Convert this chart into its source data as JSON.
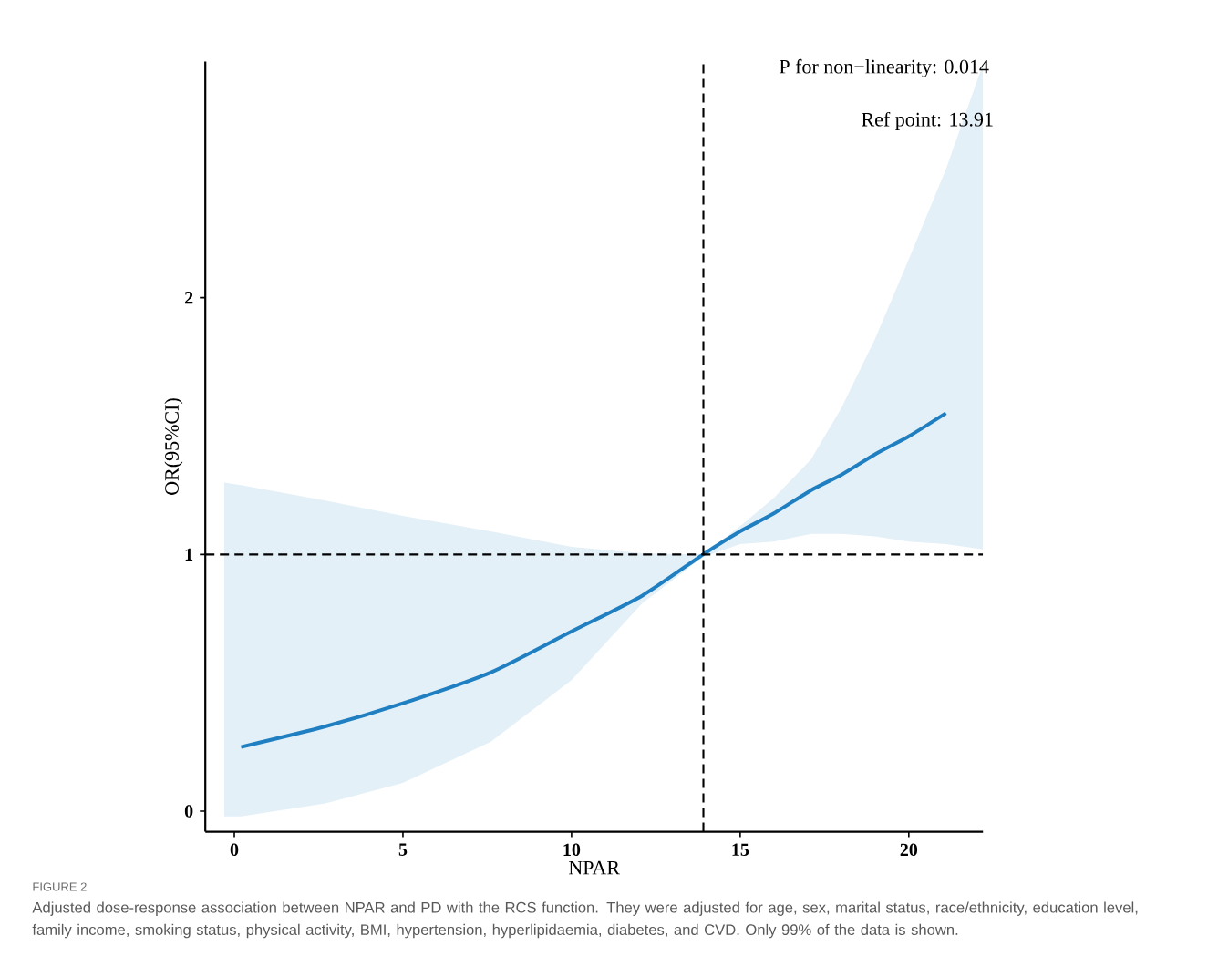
{
  "chart_data": {
    "type": "line",
    "xlabel": "NPAR",
    "ylabel": "OR(95%CI)",
    "xlim": [
      -0.86,
      22.2
    ],
    "ylim": [
      -0.08,
      2.92
    ],
    "xticks": [
      0,
      5,
      10,
      15,
      20
    ],
    "yticks": [
      0,
      1,
      2
    ],
    "grid": false,
    "marker": "none",
    "line_style": "solid",
    "series": [
      {
        "color": "#1f7fc1",
        "x": [
          -0.3,
          0.2,
          2.7,
          5.0,
          7.6,
          10.0,
          12.1,
          13.9,
          15.0,
          16.0,
          17.1,
          18.0,
          19.0,
          20.0,
          21.1,
          22.2
        ],
        "values": [
          null,
          0.25,
          0.33,
          0.42,
          0.54,
          0.7,
          0.84,
          1.0,
          1.09,
          1.16,
          1.25,
          1.31,
          1.39,
          1.46,
          1.55,
          null
        ],
        "lower": [
          -0.02,
          -0.02,
          0.03,
          0.11,
          0.27,
          0.51,
          0.81,
          0.99,
          1.04,
          1.05,
          1.08,
          1.08,
          1.07,
          1.05,
          1.04,
          1.02
        ],
        "upper": [
          1.28,
          1.27,
          1.21,
          1.15,
          1.09,
          1.03,
          1.005,
          1.0,
          1.11,
          1.22,
          1.37,
          1.57,
          1.84,
          2.15,
          2.5,
          2.91
        ]
      }
    ],
    "ref_lines": [
      {
        "axis": "x",
        "value": 13.91,
        "color": "#000000",
        "line_style": "dashed"
      },
      {
        "axis": "y",
        "value": 1,
        "color": "#000000",
        "line_style": "dashed"
      }
    ],
    "annotations": [
      "P for non−linearity:  0.014",
      "Ref point:  13.91",
      "FIGURE 2",
      "Adjusted dose-response association between NPAR and PD with the RCS function. They were adjusted for age, sex, marital status, race/ethnicity, education level, family income, smoking status, physical activity, BMI, hypertension, hyperlipidaemia, diabetes, and CVD. Only 99% of the data is shown."
    ]
  }
}
